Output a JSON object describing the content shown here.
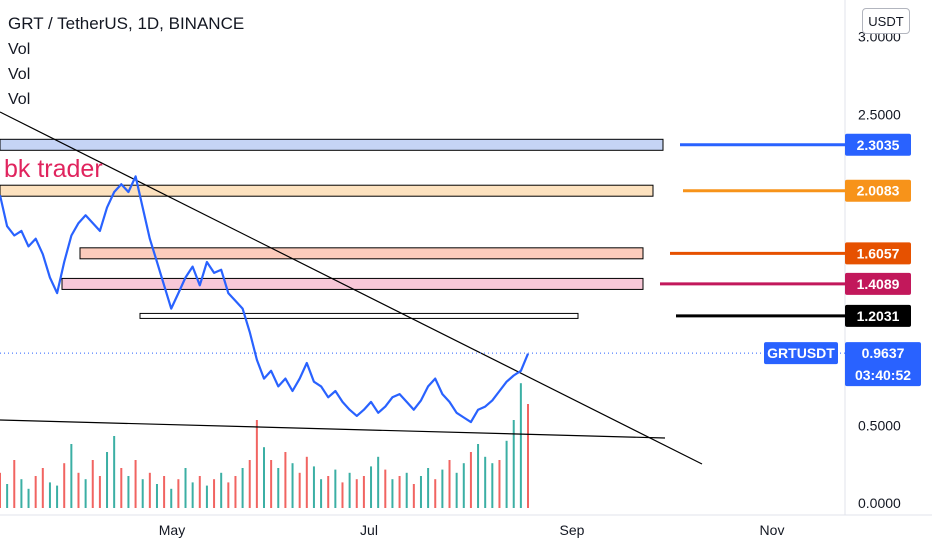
{
  "header": {
    "title": "GRT / TetherUS, 1D, BINANCE",
    "indicators": [
      "Vol",
      "Vol",
      "Vol"
    ]
  },
  "watermark": "bk trader",
  "currency_button": "USDT",
  "symbol_tag": "GRTUSDT",
  "countdown": "03:40:52",
  "colors": {
    "price_line": "#2962ff",
    "volume_up": "#26a69a",
    "volume_down": "#ef5350",
    "last_price_tag": "#2962ff"
  },
  "chart_data": {
    "type": "line",
    "symbol": "GRTUSDT",
    "exchange": "BINANCE",
    "interval": "1D",
    "x_axis_ticks": [
      "May",
      "Jul",
      "Sep",
      "Nov"
    ],
    "y_axis_ticks": [
      "0.0000",
      "0.5000",
      "2.5000",
      "3.0000"
    ],
    "ylim": [
      0.0,
      3.0
    ],
    "last_price": "0.9637",
    "price_series": {
      "name": "GRTUSDT",
      "values": [
        1.98,
        1.78,
        1.72,
        1.75,
        1.65,
        1.7,
        1.6,
        1.45,
        1.35,
        1.55,
        1.72,
        1.8,
        1.85,
        1.8,
        1.75,
        1.9,
        2.0,
        2.05,
        2.0,
        2.1,
        1.9,
        1.7,
        1.55,
        1.4,
        1.25,
        1.35,
        1.45,
        1.52,
        1.4,
        1.55,
        1.48,
        1.5,
        1.35,
        1.3,
        1.25,
        1.1,
        0.92,
        0.8,
        0.85,
        0.75,
        0.8,
        0.72,
        0.8,
        0.9,
        0.78,
        0.75,
        0.68,
        0.72,
        0.65,
        0.6,
        0.56,
        0.6,
        0.65,
        0.58,
        0.62,
        0.68,
        0.7,
        0.65,
        0.6,
        0.66,
        0.75,
        0.8,
        0.7,
        0.65,
        0.58,
        0.55,
        0.52,
        0.6,
        0.62,
        0.66,
        0.72,
        0.78,
        0.82,
        0.85,
        0.96
      ]
    },
    "volume_series": {
      "name": "Vol",
      "values": [
        0.22,
        0.15,
        0.3,
        0.18,
        0.12,
        0.2,
        0.25,
        0.16,
        0.14,
        0.28,
        0.4,
        0.22,
        0.18,
        0.3,
        0.2,
        0.35,
        0.45,
        0.25,
        0.2,
        0.3,
        0.18,
        0.22,
        0.15,
        0.2,
        0.12,
        0.18,
        0.25,
        0.16,
        0.2,
        0.14,
        0.18,
        0.22,
        0.16,
        0.2,
        0.25,
        0.3,
        0.55,
        0.38,
        0.3,
        0.25,
        0.35,
        0.28,
        0.22,
        0.32,
        0.26,
        0.18,
        0.2,
        0.24,
        0.16,
        0.22,
        0.18,
        0.2,
        0.26,
        0.32,
        0.24,
        0.18,
        0.2,
        0.22,
        0.15,
        0.2,
        0.25,
        0.18,
        0.24,
        0.3,
        0.22,
        0.28,
        0.35,
        0.4,
        0.32,
        0.28,
        0.3,
        0.42,
        0.55,
        0.78,
        0.65
      ],
      "directions": [
        0,
        1,
        0,
        1,
        1,
        0,
        0,
        1,
        1,
        0,
        1,
        0,
        1,
        0,
        0,
        1,
        1,
        0,
        1,
        0,
        1,
        0,
        1,
        0,
        1,
        0,
        1,
        1,
        0,
        1,
        0,
        1,
        0,
        0,
        1,
        0,
        0,
        1,
        0,
        1,
        0,
        1,
        0,
        0,
        1,
        1,
        0,
        1,
        0,
        1,
        0,
        0,
        1,
        1,
        0,
        1,
        0,
        1,
        0,
        1,
        1,
        0,
        1,
        0,
        1,
        1,
        0,
        1,
        1,
        1,
        0,
        1,
        1,
        1,
        0
      ]
    },
    "levels": [
      {
        "price": "2.3035",
        "color": "#2962ff",
        "zone": "#c5d4f5"
      },
      {
        "price": "2.0083",
        "color": "#f7931a",
        "zone": "#fde2bf"
      },
      {
        "price": "1.6057",
        "color": "#e65100",
        "zone": "#fcccbc"
      },
      {
        "price": "1.4089",
        "color": "#c2185b",
        "zone": "#f8c8d8"
      },
      {
        "price": "1.2031",
        "color": "#000000",
        "zone": "#ffffff"
      }
    ],
    "trendlines": [
      {
        "name": "descending-resistance",
        "color": "#000000"
      },
      {
        "name": "flat-support",
        "color": "#000000"
      }
    ],
    "grid": false
  }
}
